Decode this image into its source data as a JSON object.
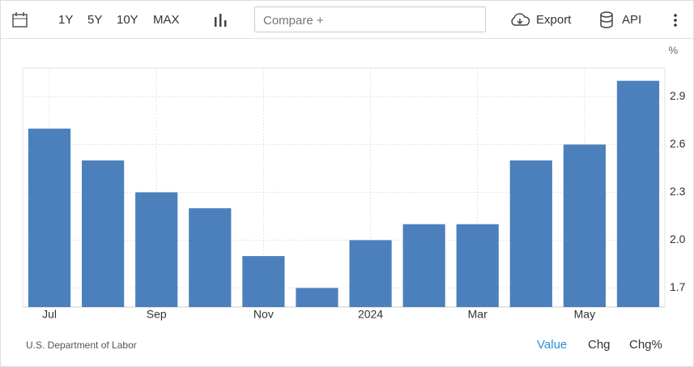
{
  "toolbar": {
    "ranges": [
      "1Y",
      "5Y",
      "10Y",
      "MAX"
    ],
    "compare": "Compare +",
    "export": "Export",
    "api": "API"
  },
  "chart_data": {
    "type": "bar",
    "y_unit": "%",
    "source": "U.S. Department of Labor",
    "categories": [
      "Jul",
      null,
      "Sep",
      null,
      "Nov",
      null,
      "2024",
      null,
      "Mar",
      null,
      "May",
      null
    ],
    "values": [
      2.7,
      2.5,
      2.3,
      2.2,
      1.9,
      1.7,
      2.0,
      2.1,
      2.1,
      2.5,
      2.6,
      3.0
    ],
    "color": "#4c80bd",
    "ylim": [
      1.58,
      3.08
    ],
    "yticks": [
      1.7,
      {
        "value": 2,
        "label": "2.0"
      },
      2.3,
      2.6,
      2.9
    ],
    "grid": true
  },
  "footer": {
    "tabs": [
      "Value",
      "Chg",
      "Chg%"
    ],
    "active_tab_index": 0
  }
}
